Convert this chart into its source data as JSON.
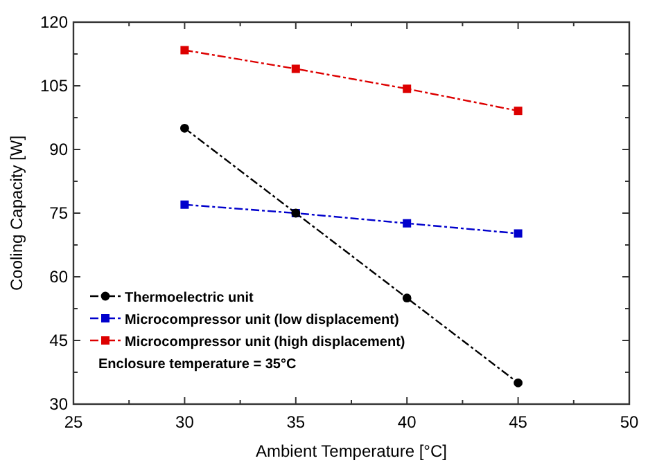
{
  "chart_data": {
    "type": "line",
    "xlabel": "Ambient Temperature [°C]",
    "ylabel": "Cooling Capacity [W]",
    "x": [
      30,
      35,
      40,
      45
    ],
    "series": [
      {
        "name": "Thermoelectric unit",
        "color": "#000000",
        "marker": "circle",
        "values": [
          95,
          75,
          55,
          35
        ]
      },
      {
        "name": "Microcompressor unit (low displacement)",
        "color": "#0000cc",
        "marker": "square",
        "values": [
          77,
          75,
          72.6,
          70.2
        ]
      },
      {
        "name": "Microcompressor unit (high displacement)",
        "color": "#dd0000",
        "marker": "square",
        "values": [
          113.4,
          109,
          104.3,
          99.1
        ]
      }
    ],
    "xlim": [
      25,
      50
    ],
    "xticks": [
      25,
      {
        "value": 27.5,
        "label": null
      },
      30,
      {
        "value": 32.5,
        "label": null
      },
      35,
      {
        "value": 37.5,
        "label": null
      },
      40,
      {
        "value": 42.5,
        "label": null
      },
      45,
      {
        "value": 47.5,
        "label": null
      },
      50
    ],
    "ylim": [
      30,
      120
    ],
    "yticks": [
      30,
      {
        "value": 37.5,
        "label": null
      },
      45,
      {
        "value": 52.5,
        "label": null
      },
      60,
      {
        "value": 67.5,
        "label": null
      },
      75,
      {
        "value": 82.5,
        "label": null
      },
      90,
      {
        "value": 97.5,
        "label": null
      },
      105,
      {
        "value": 112.5,
        "label": null
      },
      120
    ],
    "line_style": "dashed",
    "legend": "bottom left",
    "grid": false,
    "annotations": [
      "Enclosure temperature = 35°C"
    ]
  }
}
